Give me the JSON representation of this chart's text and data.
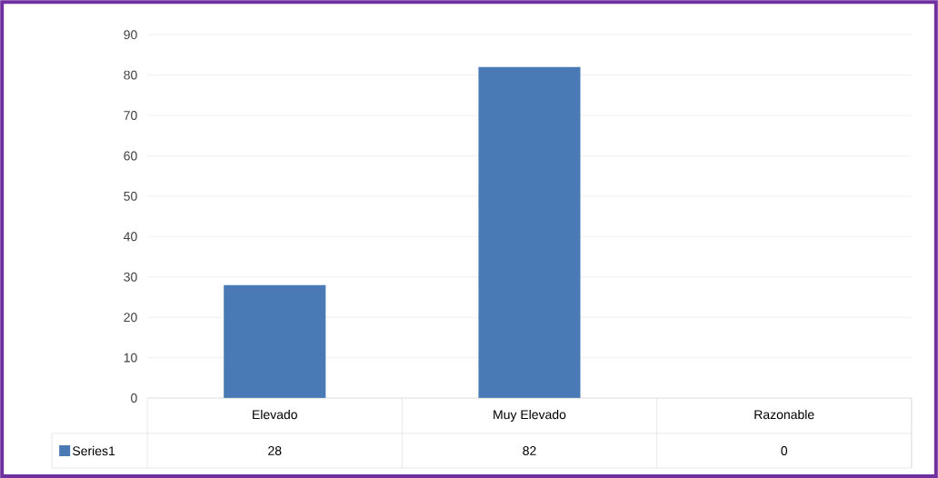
{
  "chart_data": {
    "type": "bar",
    "categories": [
      "Elevado",
      "Muy Elevado",
      "Razonable"
    ],
    "series": [
      {
        "name": "Series1",
        "color": "#4a7ab5",
        "values": [
          28,
          82,
          0
        ]
      }
    ],
    "ylim": [
      0,
      90
    ],
    "yticks": [
      0,
      10,
      20,
      30,
      40,
      50,
      60,
      70,
      80,
      90
    ],
    "grid": "y",
    "data_labels": true,
    "legend": "bottom left"
  }
}
